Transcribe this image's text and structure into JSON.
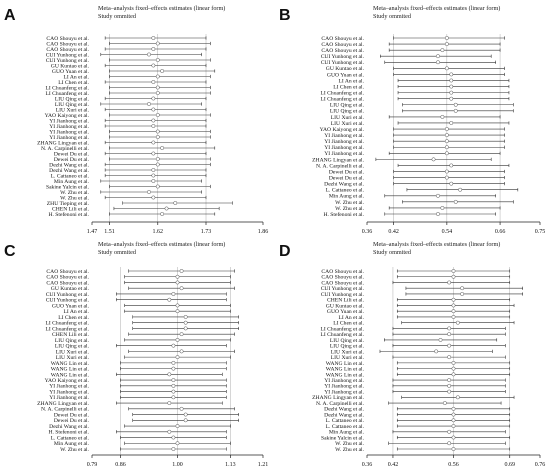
{
  "figure_title": "Meta-analysis fixed-effects estimates (linear form)",
  "figure_subtitle": "Study ommited",
  "chart_data": [
    {
      "panel": "A",
      "type": "forest",
      "title": "Meta–analysis fixed–effects estimates (linear form)",
      "subtitle": "Study ommited",
      "ticks": [
        1.47,
        1.51,
        1.62,
        1.73,
        1.86
      ],
      "xlim": [
        1.47,
        1.86
      ],
      "reference_lines": [
        1.51,
        1.62,
        1.73
      ],
      "studies": [
        {
          "label": "CAO Shouyu et al.",
          "est": 1.61,
          "lo": 1.5,
          "hi": 1.73
        },
        {
          "label": "CAO Shouyu et al.",
          "est": 1.62,
          "lo": 1.51,
          "hi": 1.74
        },
        {
          "label": "CAO Shouyu et al.",
          "est": 1.61,
          "lo": 1.5,
          "hi": 1.73
        },
        {
          "label": "CUI Yunhong et al.",
          "est": 1.6,
          "lo": 1.49,
          "hi": 1.72
        },
        {
          "label": "CUI Yunhong et al.",
          "est": 1.62,
          "lo": 1.51,
          "hi": 1.74
        },
        {
          "label": "GU Kuntao et al.",
          "est": 1.61,
          "lo": 1.5,
          "hi": 1.73
        },
        {
          "label": "GUO Yuan et al.",
          "est": 1.63,
          "lo": 1.51,
          "hi": 1.75
        },
        {
          "label": "LI An et al.",
          "est": 1.62,
          "lo": 1.51,
          "hi": 1.74
        },
        {
          "label": "LI Chen et al.",
          "est": 1.61,
          "lo": 1.5,
          "hi": 1.73
        },
        {
          "label": "LI Chuanfeng et al.",
          "est": 1.62,
          "lo": 1.51,
          "hi": 1.74
        },
        {
          "label": "LI Chuanfeng et al.",
          "est": 1.62,
          "lo": 1.51,
          "hi": 1.74
        },
        {
          "label": "LIU Qing et al.",
          "est": 1.61,
          "lo": 1.5,
          "hi": 1.73
        },
        {
          "label": "LIU Qing et al.",
          "est": 1.6,
          "lo": 1.49,
          "hi": 1.72
        },
        {
          "label": "LIU Xuri et al.",
          "est": 1.61,
          "lo": 1.5,
          "hi": 1.73
        },
        {
          "label": "YAO Kaiyong et al.",
          "est": 1.62,
          "lo": 1.51,
          "hi": 1.74
        },
        {
          "label": "YI Jianhong et al.",
          "est": 1.61,
          "lo": 1.5,
          "hi": 1.73
        },
        {
          "label": "YI Jianhong et al.",
          "est": 1.61,
          "lo": 1.5,
          "hi": 1.73
        },
        {
          "label": "YI Jianhong et al.",
          "est": 1.62,
          "lo": 1.51,
          "hi": 1.74
        },
        {
          "label": "YI Jianhong et al.",
          "est": 1.62,
          "lo": 1.51,
          "hi": 1.74
        },
        {
          "label": "ZHANG Lingyan et al.",
          "est": 1.61,
          "lo": 1.5,
          "hi": 1.73
        },
        {
          "label": "N. A. Carpinelli et al.",
          "est": 1.63,
          "lo": 1.51,
          "hi": 1.75
        },
        {
          "label": "Dewei Du et al.",
          "est": 1.61,
          "lo": 1.5,
          "hi": 1.73
        },
        {
          "label": "Dewei Du et al.",
          "est": 1.62,
          "lo": 1.51,
          "hi": 1.74
        },
        {
          "label": "Dezhi Wang et al.",
          "est": 1.62,
          "lo": 1.5,
          "hi": 1.74
        },
        {
          "label": "Dezhi Wang et al.",
          "est": 1.61,
          "lo": 1.5,
          "hi": 1.73
        },
        {
          "label": "L. Cattaneo et al.",
          "est": 1.61,
          "lo": 1.5,
          "hi": 1.73
        },
        {
          "label": "Min Aung et al.",
          "est": 1.61,
          "lo": 1.49,
          "hi": 1.72
        },
        {
          "label": "Sakine Yalcin et al.",
          "est": 1.62,
          "lo": 1.51,
          "hi": 1.74
        },
        {
          "label": "W. Zhu et al.",
          "est": 1.6,
          "lo": 1.49,
          "hi": 1.72
        },
        {
          "label": "W. Zhu et al.",
          "est": 1.61,
          "lo": 1.5,
          "hi": 1.73
        },
        {
          "label": "ZHU Tieping et al.",
          "est": 1.66,
          "lo": 1.54,
          "hi": 1.79
        },
        {
          "label": "CHEN Lili et al.",
          "est": 1.64,
          "lo": 1.52,
          "hi": 1.76
        },
        {
          "label": "H. Stefenoni et al.",
          "est": 1.63,
          "lo": 1.51,
          "hi": 1.75
        }
      ]
    },
    {
      "panel": "B",
      "type": "forest",
      "title": "Meta–analysis fixed–effects estimates (linear form)",
      "subtitle": "Study ommited",
      "ticks": [
        0.36,
        0.42,
        0.54,
        0.66,
        0.75
      ],
      "xlim": [
        0.36,
        0.75
      ],
      "reference_lines": [
        0.42,
        0.54,
        0.66
      ],
      "studies": [
        {
          "label": "CAO Shouyu et al.",
          "est": 0.54,
          "lo": 0.42,
          "hi": 0.67
        },
        {
          "label": "CAO Shouyu et al.",
          "est": 0.54,
          "lo": 0.41,
          "hi": 0.66
        },
        {
          "label": "CAO Shouyu et al.",
          "est": 0.53,
          "lo": 0.41,
          "hi": 0.66
        },
        {
          "label": "CUI Yunhong et al.",
          "est": 0.52,
          "lo": 0.39,
          "hi": 0.64
        },
        {
          "label": "CUI Yunhong et al.",
          "est": 0.52,
          "lo": 0.4,
          "hi": 0.65
        },
        {
          "label": "GU Kuntao et al.",
          "est": 0.54,
          "lo": 0.42,
          "hi": 0.67
        },
        {
          "label": "GUO Yuan et al.",
          "est": 0.55,
          "lo": 0.42,
          "hi": 0.67
        },
        {
          "label": "LI An et al.",
          "est": 0.55,
          "lo": 0.43,
          "hi": 0.68
        },
        {
          "label": "LI Chen et al.",
          "est": 0.55,
          "lo": 0.43,
          "hi": 0.68
        },
        {
          "label": "LI Chuanfeng et al.",
          "est": 0.55,
          "lo": 0.43,
          "hi": 0.68
        },
        {
          "label": "LI Chuanfeng et al.",
          "est": 0.55,
          "lo": 0.43,
          "hi": 0.68
        },
        {
          "label": "LIU Qing et al.",
          "est": 0.56,
          "lo": 0.44,
          "hi": 0.69
        },
        {
          "label": "LIU Qing et al.",
          "est": 0.56,
          "lo": 0.44,
          "hi": 0.69
        },
        {
          "label": "LIU Xuri et al.",
          "est": 0.53,
          "lo": 0.41,
          "hi": 0.66
        },
        {
          "label": "LIU Xuri et al.",
          "est": 0.55,
          "lo": 0.43,
          "hi": 0.68
        },
        {
          "label": "YAO Kaiyong et al.",
          "est": 0.54,
          "lo": 0.42,
          "hi": 0.67
        },
        {
          "label": "YI Jianhong et al.",
          "est": 0.54,
          "lo": 0.42,
          "hi": 0.67
        },
        {
          "label": "YI Jianhong et al.",
          "est": 0.54,
          "lo": 0.42,
          "hi": 0.67
        },
        {
          "label": "YI Jianhong et al.",
          "est": 0.54,
          "lo": 0.42,
          "hi": 0.67
        },
        {
          "label": "YI Jianhong et al.",
          "est": 0.54,
          "lo": 0.41,
          "hi": 0.66
        },
        {
          "label": "ZHANG Lingyan et al.",
          "est": 0.51,
          "lo": 0.38,
          "hi": 0.64
        },
        {
          "label": "N. A. Carpinelli et al.",
          "est": 0.55,
          "lo": 0.43,
          "hi": 0.68
        },
        {
          "label": "Dewei Du et al.",
          "est": 0.54,
          "lo": 0.42,
          "hi": 0.67
        },
        {
          "label": "Dewei Du et al.",
          "est": 0.54,
          "lo": 0.42,
          "hi": 0.67
        },
        {
          "label": "Dezhi Wang et al.",
          "est": 0.55,
          "lo": 0.42,
          "hi": 0.67
        },
        {
          "label": "L. Cattaneo et al.",
          "est": 0.57,
          "lo": 0.45,
          "hi": 0.7
        },
        {
          "label": "Min Aung et al.",
          "est": 0.52,
          "lo": 0.4,
          "hi": 0.65
        },
        {
          "label": "W. Zhu et al.",
          "est": 0.56,
          "lo": 0.44,
          "hi": 0.69
        },
        {
          "label": "W. Zhu et al.",
          "est": 0.53,
          "lo": 0.41,
          "hi": 0.66
        },
        {
          "label": "H. Stefenoni et al.",
          "est": 0.52,
          "lo": 0.4,
          "hi": 0.65
        }
      ]
    },
    {
      "panel": "C",
      "type": "forest",
      "title": "Meta–analysis fixed–effects estimates (linear form)",
      "subtitle": "Study ommited",
      "ticks": [
        0.79,
        0.86,
        1.0,
        1.13,
        1.21
      ],
      "xlim": [
        0.79,
        1.21
      ],
      "reference_lines": [
        0.86,
        1.0,
        1.13
      ],
      "studies": [
        {
          "label": "CAO Shouyu et al.",
          "est": 1.01,
          "lo": 0.88,
          "hi": 1.14
        },
        {
          "label": "CAO Shouyu et al.",
          "est": 1.0,
          "lo": 0.87,
          "hi": 1.13
        },
        {
          "label": "CAO Shouyu et al.",
          "est": 1.0,
          "lo": 0.87,
          "hi": 1.13
        },
        {
          "label": "GU Kuntao et al.",
          "est": 1.01,
          "lo": 0.88,
          "hi": 1.14
        },
        {
          "label": "CUI Yunhong et al.",
          "est": 0.99,
          "lo": 0.85,
          "hi": 1.12
        },
        {
          "label": "CUI Yunhong et al.",
          "est": 0.98,
          "lo": 0.85,
          "hi": 1.12
        },
        {
          "label": "GUO Yuan et al.",
          "est": 1.0,
          "lo": 0.87,
          "hi": 1.13
        },
        {
          "label": "LI An et al.",
          "est": 1.0,
          "lo": 0.87,
          "hi": 1.13
        },
        {
          "label": "LI Chen et al.",
          "est": 1.02,
          "lo": 0.89,
          "hi": 1.15
        },
        {
          "label": "LI Chuanfeng et al.",
          "est": 1.02,
          "lo": 0.89,
          "hi": 1.15
        },
        {
          "label": "LI Chuanfeng et al.",
          "est": 1.02,
          "lo": 0.89,
          "hi": 1.15
        },
        {
          "label": "CHEN Lili et al.",
          "est": 1.01,
          "lo": 0.88,
          "hi": 1.14
        },
        {
          "label": "LIU Qing et al.",
          "est": 1.0,
          "lo": 0.87,
          "hi": 1.13
        },
        {
          "label": "LIU Qing et al.",
          "est": 0.99,
          "lo": 0.85,
          "hi": 1.12
        },
        {
          "label": "LIU Xuri et al.",
          "est": 1.01,
          "lo": 0.88,
          "hi": 1.14
        },
        {
          "label": "LIU Xuri et al.",
          "est": 1.0,
          "lo": 0.87,
          "hi": 1.13
        },
        {
          "label": "WANG Lin et al.",
          "est": 0.99,
          "lo": 0.86,
          "hi": 1.12
        },
        {
          "label": "WANG Lin et al.",
          "est": 0.99,
          "lo": 0.86,
          "hi": 1.12
        },
        {
          "label": "WANG Lin et al.",
          "est": 0.98,
          "lo": 0.85,
          "hi": 1.11
        },
        {
          "label": "YAO Kaiyong et al.",
          "est": 0.99,
          "lo": 0.86,
          "hi": 1.12
        },
        {
          "label": "YI Jianhong et al.",
          "est": 0.99,
          "lo": 0.86,
          "hi": 1.12
        },
        {
          "label": "YI Jianhong et al.",
          "est": 0.99,
          "lo": 0.86,
          "hi": 1.12
        },
        {
          "label": "YI Jianhong et al.",
          "est": 0.99,
          "lo": 0.86,
          "hi": 1.12
        },
        {
          "label": "ZHANG Lingyan et al.",
          "est": 0.98,
          "lo": 0.85,
          "hi": 1.11
        },
        {
          "label": "N. A. Carpinelli et al.",
          "est": 1.01,
          "lo": 0.88,
          "hi": 1.14
        },
        {
          "label": "Dewei Du et al.",
          "est": 1.02,
          "lo": 0.89,
          "hi": 1.15
        },
        {
          "label": "Dewei Du et al.",
          "est": 1.02,
          "lo": 0.89,
          "hi": 1.15
        },
        {
          "label": "Dezhi Wang et al.",
          "est": 1.0,
          "lo": 0.87,
          "hi": 1.13
        },
        {
          "label": "H. Stefenoni et al.",
          "est": 0.98,
          "lo": 0.85,
          "hi": 1.12
        },
        {
          "label": "L. Cattaneo et al.",
          "est": 0.99,
          "lo": 0.86,
          "hi": 1.12
        },
        {
          "label": "Min Aung et al.",
          "est": 1.0,
          "lo": 0.87,
          "hi": 1.13
        },
        {
          "label": "W. Zhu et al.",
          "est": 0.99,
          "lo": 0.86,
          "hi": 1.12
        }
      ]
    },
    {
      "panel": "D",
      "type": "forest",
      "title": "Meta–analysis fixed–effects estimates (linear form)",
      "subtitle": "Study ommited",
      "ticks": [
        0.36,
        0.42,
        0.56,
        0.69,
        0.76
      ],
      "xlim": [
        0.36,
        0.76
      ],
      "reference_lines": [
        0.42,
        0.56,
        0.69
      ],
      "studies": [
        {
          "label": "CAO Shouyu et al.",
          "est": 0.56,
          "lo": 0.43,
          "hi": 0.69
        },
        {
          "label": "CAO Shouyu et al.",
          "est": 0.56,
          "lo": 0.43,
          "hi": 0.69
        },
        {
          "label": "CAO Shouyu et al.",
          "est": 0.55,
          "lo": 0.42,
          "hi": 0.69
        },
        {
          "label": "CUI Yunhong et al.",
          "est": 0.58,
          "lo": 0.45,
          "hi": 0.72
        },
        {
          "label": "CUI Yunhong et al.",
          "est": 0.58,
          "lo": 0.45,
          "hi": 0.72
        },
        {
          "label": "CHEN Lili et al.",
          "est": 0.56,
          "lo": 0.43,
          "hi": 0.69
        },
        {
          "label": "GU Kuntao et al.",
          "est": 0.56,
          "lo": 0.43,
          "hi": 0.7
        },
        {
          "label": "GUO Yuan et al.",
          "est": 0.56,
          "lo": 0.43,
          "hi": 0.69
        },
        {
          "label": "LI An et al.",
          "est": 0.56,
          "lo": 0.43,
          "hi": 0.69
        },
        {
          "label": "LI Chen et al.",
          "est": 0.57,
          "lo": 0.44,
          "hi": 0.7
        },
        {
          "label": "LI Chuanfeng et al.",
          "est": 0.55,
          "lo": 0.42,
          "hi": 0.68
        },
        {
          "label": "LI Chuanfeng et al.",
          "est": 0.55,
          "lo": 0.42,
          "hi": 0.68
        },
        {
          "label": "LIU Qing et al.",
          "est": 0.53,
          "lo": 0.4,
          "hi": 0.66
        },
        {
          "label": "LIU Qing et al.",
          "est": 0.55,
          "lo": 0.42,
          "hi": 0.68
        },
        {
          "label": "LIU Xuri et al.",
          "est": 0.52,
          "lo": 0.39,
          "hi": 0.65
        },
        {
          "label": "LIU Xuri et al.",
          "est": 0.55,
          "lo": 0.42,
          "hi": 0.68
        },
        {
          "label": "WANG Lin et al.",
          "est": 0.56,
          "lo": 0.43,
          "hi": 0.69
        },
        {
          "label": "WANG Lin et al.",
          "est": 0.56,
          "lo": 0.43,
          "hi": 0.69
        },
        {
          "label": "WANG Lin et al.",
          "est": 0.56,
          "lo": 0.43,
          "hi": 0.69
        },
        {
          "label": "YI Jianhong et al.",
          "est": 0.55,
          "lo": 0.42,
          "hi": 0.68
        },
        {
          "label": "YI Jianhong et al.",
          "est": 0.55,
          "lo": 0.42,
          "hi": 0.68
        },
        {
          "label": "YI Jianhong et al.",
          "est": 0.55,
          "lo": 0.42,
          "hi": 0.68
        },
        {
          "label": "ZHANG Lingyan et al.",
          "est": 0.57,
          "lo": 0.44,
          "hi": 0.7
        },
        {
          "label": "N. A. Carpinelli et al.",
          "est": 0.54,
          "lo": 0.41,
          "hi": 0.67
        },
        {
          "label": "Dezhi Wang et al.",
          "est": 0.56,
          "lo": 0.43,
          "hi": 0.69
        },
        {
          "label": "Dezhi Wang et al.",
          "est": 0.56,
          "lo": 0.43,
          "hi": 0.69
        },
        {
          "label": "L. Cattaneo et al.",
          "est": 0.56,
          "lo": 0.43,
          "hi": 0.69
        },
        {
          "label": "L. Cattaneo et al.",
          "est": 0.56,
          "lo": 0.43,
          "hi": 0.69
        },
        {
          "label": "Min Aung et al.",
          "est": 0.55,
          "lo": 0.42,
          "hi": 0.68
        },
        {
          "label": "Sakine Yalcin et al.",
          "est": 0.56,
          "lo": 0.43,
          "hi": 0.69
        },
        {
          "label": "W. Zhu et al.",
          "est": 0.55,
          "lo": 0.41,
          "hi": 0.68
        },
        {
          "label": "W. Zhu et al.",
          "est": 0.56,
          "lo": 0.43,
          "hi": 0.69
        }
      ]
    }
  ]
}
